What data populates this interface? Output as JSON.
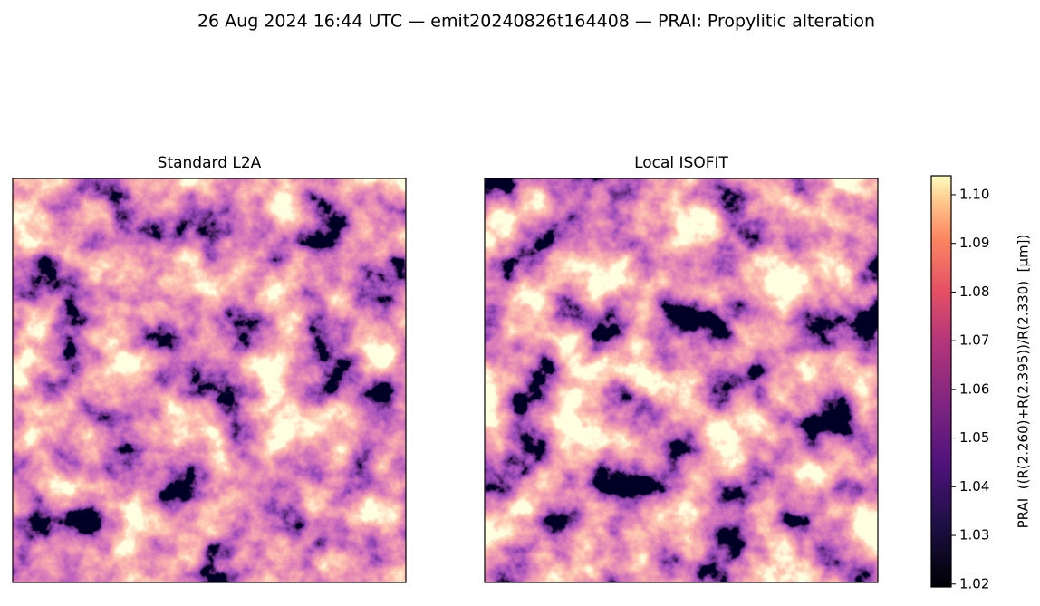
{
  "title": "26 Aug 2024 16:44 UTC — emit20240826t164408 — PRAI: Propylitic alteration",
  "chart_data": [
    {
      "type": "image",
      "title": "Standard L2A"
    },
    {
      "type": "image",
      "title": "Local ISOFIT"
    }
  ],
  "colorbar": {
    "label": "PRAI  ((R(2.260)+R(2.395))/R(2.330)  [µm])",
    "lim": [
      1.0194,
      1.1039
    ],
    "ticks": [
      1.02,
      1.03,
      1.04,
      1.05,
      1.06,
      1.07,
      1.08,
      1.09,
      {
        "value": 1.1,
        "label": "1.10"
      }
    ]
  }
}
